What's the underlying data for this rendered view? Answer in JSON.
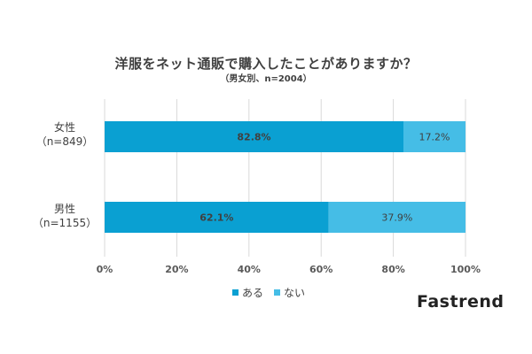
{
  "chart_data": {
    "type": "bar",
    "orientation": "horizontal",
    "stacked": true,
    "title": "洋服をネット通販で購入したことがありますか？",
    "subtitle": "（男女別、n=2004）",
    "categories": [
      {
        "name": "女性",
        "n": "（n=849）"
      },
      {
        "name": "男性",
        "n": "（n=1155）"
      }
    ],
    "series": [
      {
        "name": "ある",
        "color": "#0aa0d2",
        "values": [
          82.8,
          62.1
        ],
        "labels": [
          "82.8%",
          "62.1%"
        ]
      },
      {
        "name": "ない",
        "color": "#45bde6",
        "values": [
          17.2,
          37.9
        ],
        "labels": [
          "17.2%",
          "37.9%"
        ]
      }
    ],
    "xlim": [
      0,
      100
    ],
    "xticks": [
      "0%",
      "20%",
      "40%",
      "60%",
      "80%",
      "100%"
    ],
    "grid": true,
    "legend": "bottom"
  },
  "brand": "Fastrend"
}
